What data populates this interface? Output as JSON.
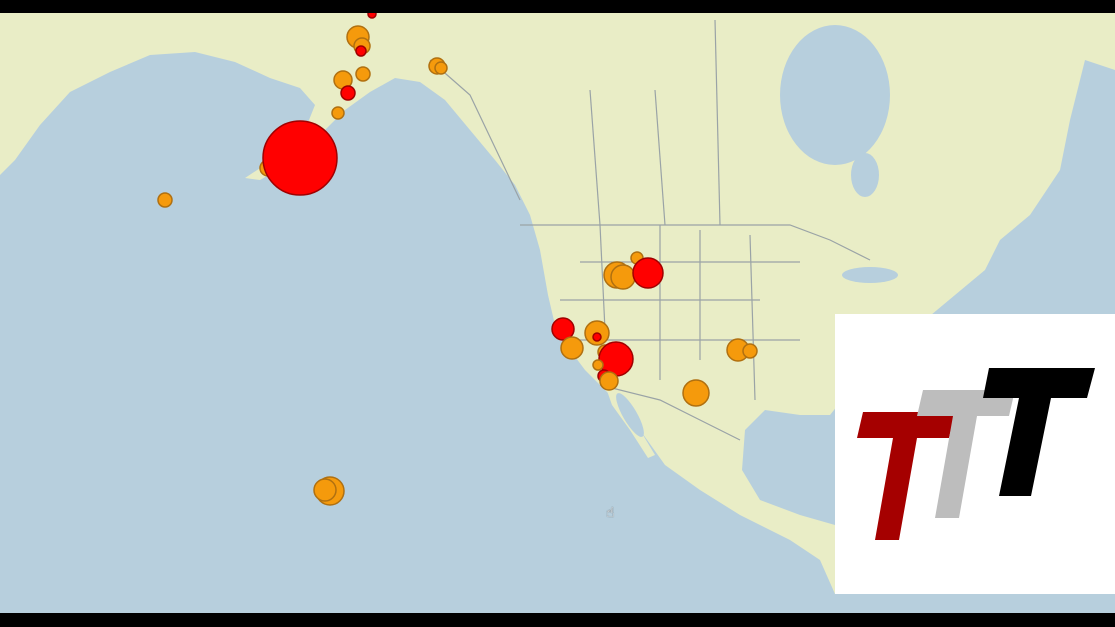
{
  "map": {
    "ocean_color": "#b7cfdd",
    "land_color": "#e9edc6",
    "border_color": "#9aa3a6",
    "marker_colors": {
      "major": "#ff0000",
      "minor": "#f59a0c"
    },
    "marker_outline": "#b07010"
  },
  "logo": {
    "text": "TTT",
    "colors": [
      "#a50000",
      "#bdbdbd",
      "#000000"
    ]
  },
  "cursor": {
    "icon": "hand-cursor-icon"
  }
}
